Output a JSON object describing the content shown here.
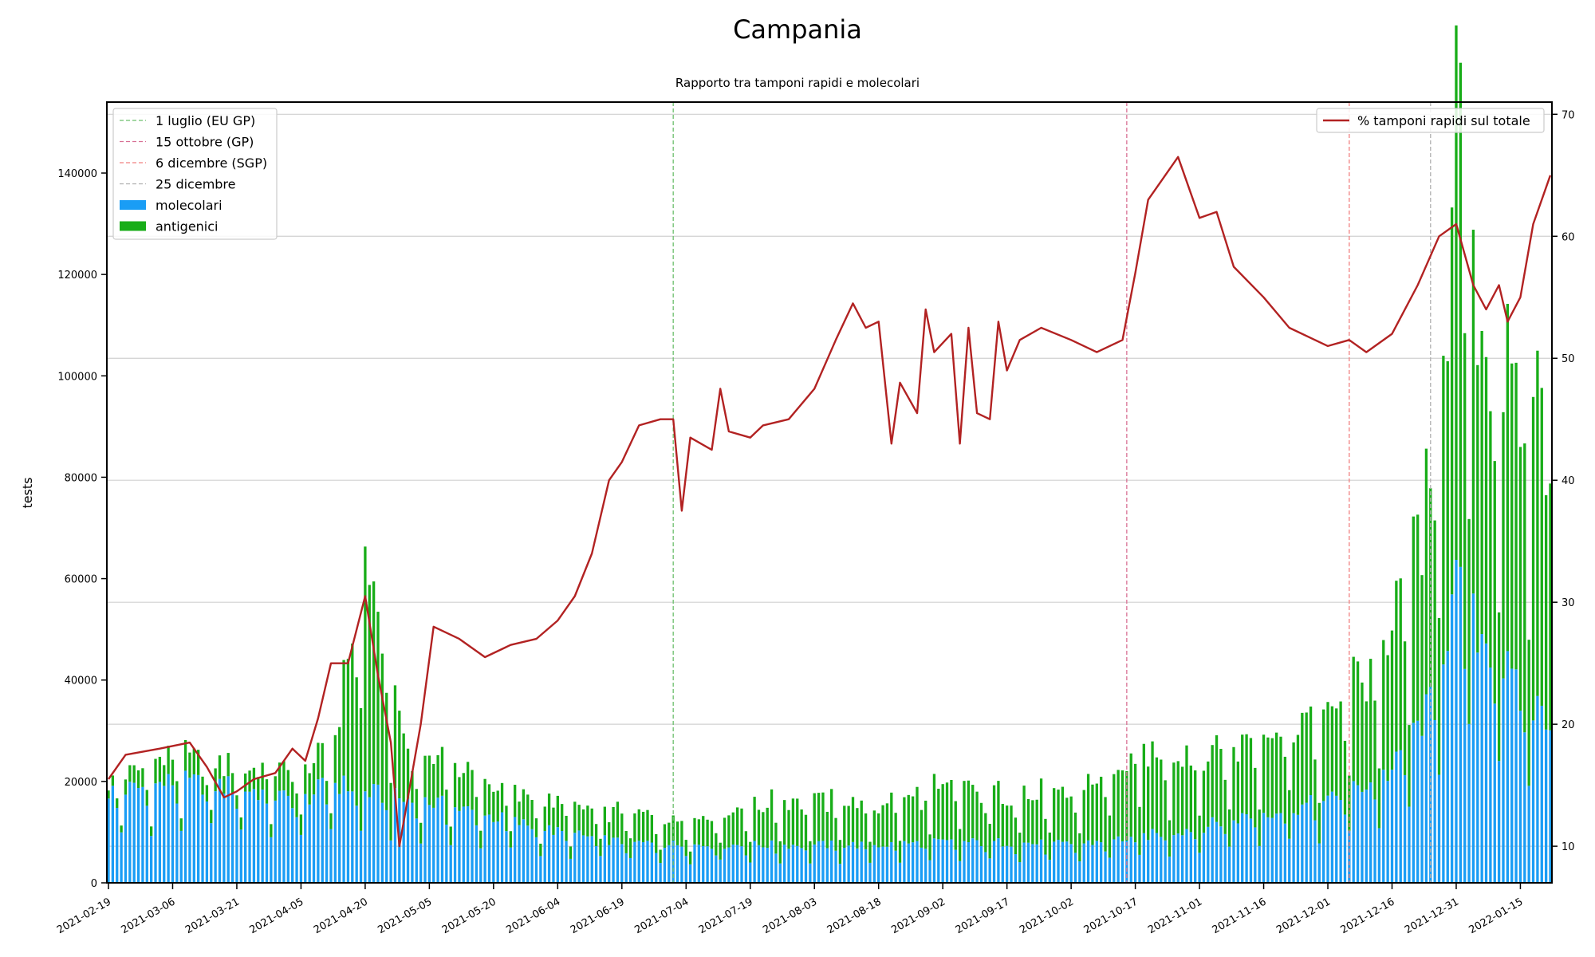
{
  "chart_data": {
    "type": "bar",
    "title": "Campania",
    "subtitle": "Rapporto tra tamponi rapidi e molecolari",
    "ylabel": "tests",
    "ylim": [
      0,
      154000
    ],
    "y2lim": [
      7,
      71
    ],
    "xlim": [
      "2021-02-19",
      "2022-01-22"
    ],
    "y_ticks": [
      0,
      20000,
      40000,
      60000,
      80000,
      100000,
      120000,
      140000
    ],
    "y2_ticks": [
      10,
      20,
      30,
      40,
      50,
      60,
      70
    ],
    "x_ticks": [
      "2021-02-19",
      "2021-03-06",
      "2021-03-21",
      "2021-04-05",
      "2021-04-20",
      "2021-05-05",
      "2021-05-20",
      "2021-06-04",
      "2021-06-19",
      "2021-07-04",
      "2021-07-19",
      "2021-08-03",
      "2021-08-18",
      "2021-09-02",
      "2021-09-17",
      "2021-10-02",
      "2021-10-17",
      "2021-11-01",
      "2021-11-16",
      "2021-12-01",
      "2021-12-16",
      "2021-12-31",
      "2022-01-15"
    ],
    "grid": true,
    "colors": {
      "molecolari": "#1a9df5",
      "antigenici": "#18ad18",
      "line": "#b22222",
      "eu_gp": "#6cbf6c",
      "gp": "#d87093",
      "sgp": "#f08080",
      "natale": "#b0b0b0"
    },
    "vlines": [
      {
        "label": "1 luglio (EU GP)",
        "date": "2021-07-01",
        "color": "#6cbf6c"
      },
      {
        "label": "15 ottobre (GP)",
        "date": "2021-10-15",
        "color": "#d87093"
      },
      {
        "label": "6 dicembre (SGP)",
        "date": "2021-12-06",
        "color": "#f08080"
      },
      {
        "label": "25 dicembre",
        "date": "2021-12-25",
        "color": "#b0b0b0"
      }
    ],
    "legend_left": [
      "1 luglio (EU GP)",
      "15 ottobre (GP)",
      "6 dicembre (SGP)",
      "25 dicembre",
      "molecolari",
      "antigenici"
    ],
    "legend_left_position": "top-left",
    "legend_right": "% tamponi rapidi sul totale",
    "legend_right_position": "top-right",
    "series": [
      {
        "name": "molecolari",
        "stacked": true,
        "values": [
          {
            "x": "2021-02-19",
            "y": 18000
          },
          {
            "x": "2021-03-01",
            "y": 19000
          },
          {
            "x": "2021-03-06",
            "y": 20000
          },
          {
            "x": "2021-03-21",
            "y": 19000
          },
          {
            "x": "2021-04-05",
            "y": 16000
          },
          {
            "x": "2021-04-12",
            "y": 20000
          },
          {
            "x": "2021-04-20",
            "y": 18000
          },
          {
            "x": "2021-05-01",
            "y": 16000
          },
          {
            "x": "2021-05-05",
            "y": 16000
          },
          {
            "x": "2021-05-20",
            "y": 13000
          },
          {
            "x": "2021-06-04",
            "y": 10000
          },
          {
            "x": "2021-06-19",
            "y": 8000
          },
          {
            "x": "2021-07-04",
            "y": 7500
          },
          {
            "x": "2021-07-19",
            "y": 7500
          },
          {
            "x": "2021-08-03",
            "y": 7500
          },
          {
            "x": "2021-08-18",
            "y": 7500
          },
          {
            "x": "2021-09-02",
            "y": 8000
          },
          {
            "x": "2021-09-17",
            "y": 8000
          },
          {
            "x": "2021-10-02",
            "y": 7500
          },
          {
            "x": "2021-10-17",
            "y": 9000
          },
          {
            "x": "2021-11-01",
            "y": 11000
          },
          {
            "x": "2021-11-16",
            "y": 14000
          },
          {
            "x": "2021-12-01",
            "y": 16000
          },
          {
            "x": "2021-12-16",
            "y": 22000
          },
          {
            "x": "2021-12-25",
            "y": 35000
          },
          {
            "x": "2021-12-31",
            "y": 58000
          },
          {
            "x": "2022-01-05",
            "y": 50000
          },
          {
            "x": "2022-01-10",
            "y": 45000
          },
          {
            "x": "2022-01-15",
            "y": 36000
          },
          {
            "x": "2022-01-22",
            "y": 33000
          }
        ]
      },
      {
        "name": "antigenici",
        "stacked": true,
        "values": [
          {
            "x": "2021-02-19",
            "y": 2000
          },
          {
            "x": "2021-03-01",
            "y": 4000
          },
          {
            "x": "2021-03-06",
            "y": 5000
          },
          {
            "x": "2021-03-21",
            "y": 4000
          },
          {
            "x": "2021-04-05",
            "y": 6000
          },
          {
            "x": "2021-04-12",
            "y": 6000
          },
          {
            "x": "2021-04-20",
            "y": 43000
          },
          {
            "x": "2021-05-01",
            "y": 6000
          },
          {
            "x": "2021-05-05",
            "y": 9000
          },
          {
            "x": "2021-05-20",
            "y": 6000
          },
          {
            "x": "2021-06-04",
            "y": 5000
          },
          {
            "x": "2021-06-19",
            "y": 6000
          },
          {
            "x": "2021-07-04",
            "y": 5000
          },
          {
            "x": "2021-07-19",
            "y": 7500
          },
          {
            "x": "2021-08-03",
            "y": 9000
          },
          {
            "x": "2021-08-18",
            "y": 7500
          },
          {
            "x": "2021-09-02",
            "y": 11000
          },
          {
            "x": "2021-09-17",
            "y": 10000
          },
          {
            "x": "2021-10-02",
            "y": 9000
          },
          {
            "x": "2021-10-17",
            "y": 16000
          },
          {
            "x": "2021-11-01",
            "y": 15000
          },
          {
            "x": "2021-11-16",
            "y": 15000
          },
          {
            "x": "2021-12-01",
            "y": 17000
          },
          {
            "x": "2021-12-16",
            "y": 25000
          },
          {
            "x": "2021-12-25",
            "y": 40000
          },
          {
            "x": "2021-12-31",
            "y": 86000
          },
          {
            "x": "2022-01-05",
            "y": 62000
          },
          {
            "x": "2022-01-10",
            "y": 57000
          },
          {
            "x": "2022-01-15",
            "y": 64000
          },
          {
            "x": "2022-01-22",
            "y": 55000
          }
        ]
      },
      {
        "name": "% tamponi rapidi sul totale",
        "axis": "right",
        "type": "line",
        "values": [
          {
            "x": "2021-02-19",
            "y": 15.5
          },
          {
            "x": "2021-02-23",
            "y": 17.5
          },
          {
            "x": "2021-03-03",
            "y": 18.0
          },
          {
            "x": "2021-03-10",
            "y": 18.5
          },
          {
            "x": "2021-03-14",
            "y": 16.5
          },
          {
            "x": "2021-03-18",
            "y": 14.0
          },
          {
            "x": "2021-03-21",
            "y": 14.5
          },
          {
            "x": "2021-03-25",
            "y": 15.5
          },
          {
            "x": "2021-03-30",
            "y": 16.0
          },
          {
            "x": "2021-04-03",
            "y": 18.0
          },
          {
            "x": "2021-04-06",
            "y": 17.0
          },
          {
            "x": "2021-04-09",
            "y": 20.5
          },
          {
            "x": "2021-04-12",
            "y": 25.0
          },
          {
            "x": "2021-04-16",
            "y": 25.0
          },
          {
            "x": "2021-04-20",
            "y": 30.5
          },
          {
            "x": "2021-04-23",
            "y": 24.0
          },
          {
            "x": "2021-04-26",
            "y": 18.5
          },
          {
            "x": "2021-04-28",
            "y": 10.0
          },
          {
            "x": "2021-05-03",
            "y": 20.0
          },
          {
            "x": "2021-05-06",
            "y": 28.0
          },
          {
            "x": "2021-05-12",
            "y": 27.0
          },
          {
            "x": "2021-05-18",
            "y": 25.5
          },
          {
            "x": "2021-05-24",
            "y": 26.5
          },
          {
            "x": "2021-05-30",
            "y": 27.0
          },
          {
            "x": "2021-06-04",
            "y": 28.5
          },
          {
            "x": "2021-06-08",
            "y": 30.5
          },
          {
            "x": "2021-06-12",
            "y": 34.0
          },
          {
            "x": "2021-06-16",
            "y": 40.0
          },
          {
            "x": "2021-06-19",
            "y": 41.5
          },
          {
            "x": "2021-06-23",
            "y": 44.5
          },
          {
            "x": "2021-06-28",
            "y": 45.0
          },
          {
            "x": "2021-07-01",
            "y": 45.0
          },
          {
            "x": "2021-07-03",
            "y": 37.5
          },
          {
            "x": "2021-07-05",
            "y": 43.5
          },
          {
            "x": "2021-07-10",
            "y": 42.5
          },
          {
            "x": "2021-07-12",
            "y": 47.5
          },
          {
            "x": "2021-07-14",
            "y": 44.0
          },
          {
            "x": "2021-07-19",
            "y": 43.5
          },
          {
            "x": "2021-07-22",
            "y": 44.5
          },
          {
            "x": "2021-07-28",
            "y": 45.0
          },
          {
            "x": "2021-08-03",
            "y": 47.5
          },
          {
            "x": "2021-08-08",
            "y": 51.5
          },
          {
            "x": "2021-08-12",
            "y": 54.5
          },
          {
            "x": "2021-08-15",
            "y": 52.5
          },
          {
            "x": "2021-08-18",
            "y": 53.0
          },
          {
            "x": "2021-08-21",
            "y": 43.0
          },
          {
            "x": "2021-08-23",
            "y": 48.0
          },
          {
            "x": "2021-08-27",
            "y": 45.5
          },
          {
            "x": "2021-08-29",
            "y": 54.0
          },
          {
            "x": "2021-08-31",
            "y": 50.5
          },
          {
            "x": "2021-09-04",
            "y": 52.0
          },
          {
            "x": "2021-09-06",
            "y": 43.0
          },
          {
            "x": "2021-09-08",
            "y": 52.5
          },
          {
            "x": "2021-09-10",
            "y": 45.5
          },
          {
            "x": "2021-09-13",
            "y": 45.0
          },
          {
            "x": "2021-09-15",
            "y": 53.0
          },
          {
            "x": "2021-09-17",
            "y": 49.0
          },
          {
            "x": "2021-09-20",
            "y": 51.5
          },
          {
            "x": "2021-09-25",
            "y": 52.5
          },
          {
            "x": "2021-10-02",
            "y": 51.5
          },
          {
            "x": "2021-10-08",
            "y": 50.5
          },
          {
            "x": "2021-10-14",
            "y": 51.5
          },
          {
            "x": "2021-10-17",
            "y": 57.0
          },
          {
            "x": "2021-10-20",
            "y": 63.0
          },
          {
            "x": "2021-10-23",
            "y": 64.5
          },
          {
            "x": "2021-10-27",
            "y": 66.5
          },
          {
            "x": "2021-10-30",
            "y": 63.5
          },
          {
            "x": "2021-11-01",
            "y": 61.5
          },
          {
            "x": "2021-11-05",
            "y": 62.0
          },
          {
            "x": "2021-11-09",
            "y": 57.5
          },
          {
            "x": "2021-11-16",
            "y": 55.0
          },
          {
            "x": "2021-11-22",
            "y": 52.5
          },
          {
            "x": "2021-11-28",
            "y": 51.5
          },
          {
            "x": "2021-12-01",
            "y": 51.0
          },
          {
            "x": "2021-12-06",
            "y": 51.5
          },
          {
            "x": "2021-12-10",
            "y": 50.5
          },
          {
            "x": "2021-12-16",
            "y": 52.0
          },
          {
            "x": "2021-12-22",
            "y": 56.0
          },
          {
            "x": "2021-12-27",
            "y": 60.0
          },
          {
            "x": "2021-12-31",
            "y": 61.0
          },
          {
            "x": "2022-01-04",
            "y": 56.0
          },
          {
            "x": "2022-01-07",
            "y": 54.0
          },
          {
            "x": "2022-01-10",
            "y": 56.0
          },
          {
            "x": "2022-01-12",
            "y": 53.0
          },
          {
            "x": "2022-01-15",
            "y": 55.0
          },
          {
            "x": "2022-01-18",
            "y": 61.0
          },
          {
            "x": "2022-01-22",
            "y": 65.0
          }
        ]
      }
    ]
  }
}
